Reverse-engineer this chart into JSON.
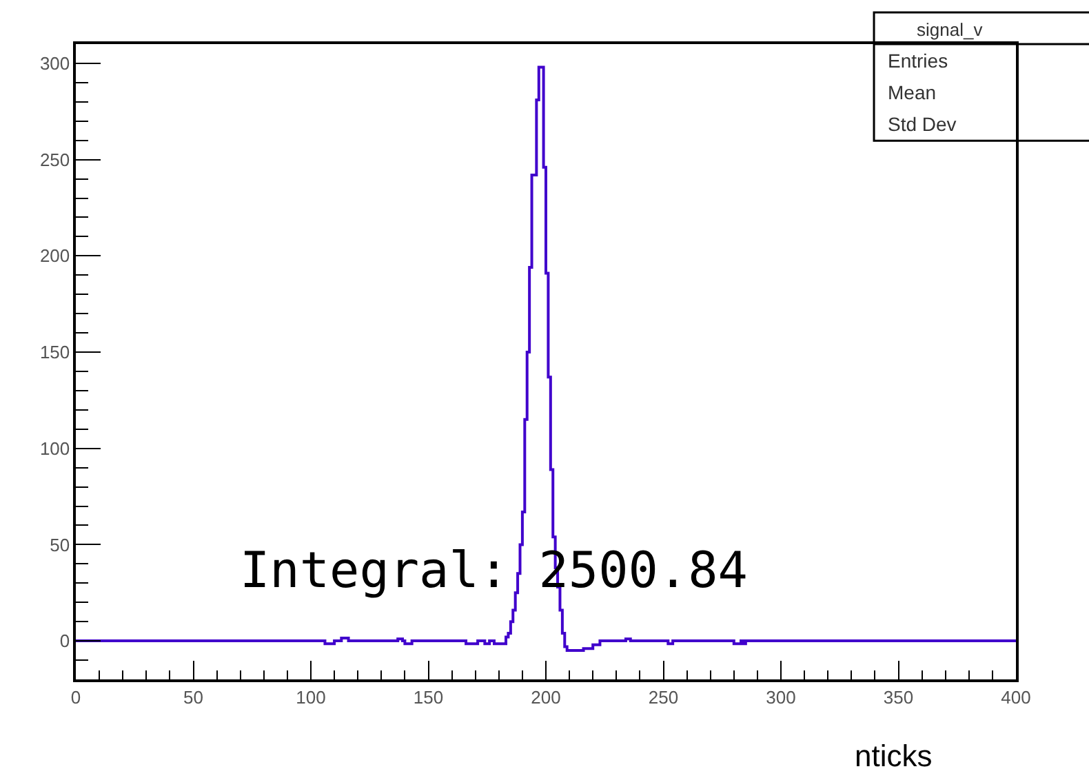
{
  "chart_data": {
    "type": "histogram",
    "xlabel": "nticks",
    "bins": [
      0,
      106,
      110,
      113,
      116,
      137,
      139,
      140,
      143,
      166,
      171,
      174,
      176,
      178,
      183,
      184,
      185,
      186,
      187,
      188,
      189,
      190,
      191,
      192,
      193,
      194,
      195,
      196,
      197,
      198,
      199,
      200,
      201,
      202,
      203,
      204,
      205,
      206,
      207,
      208,
      209,
      216,
      220,
      223,
      234,
      236,
      252,
      254,
      280,
      283,
      284,
      285,
      400
    ],
    "values": [
      0,
      -1.5,
      0,
      1.5,
      0,
      1,
      0,
      -1.5,
      0,
      -1.5,
      0,
      -1.5,
      0,
      -1.5,
      2,
      4,
      10,
      16,
      25,
      35,
      50,
      67,
      115,
      150,
      194,
      242,
      242,
      281,
      298,
      298,
      246,
      191,
      137,
      89,
      54,
      38,
      28,
      16,
      4,
      -3,
      -5,
      -4,
      -2,
      0,
      1,
      0,
      -1.5,
      0,
      -1.5,
      0,
      -1.5,
      0
    ],
    "color": "#4000cc",
    "xlim": [
      0,
      400
    ],
    "xticks": [
      0,
      50,
      100,
      150,
      200,
      250,
      300,
      350,
      400
    ],
    "ylim": [
      -20,
      310
    ],
    "yticks": [
      0,
      50,
      100,
      150,
      200,
      250,
      300
    ],
    "grid": false,
    "annotations": [
      "Integral: 2500.84",
      "signal_v",
      "Entries",
      "Mean",
      "Std Dev"
    ]
  }
}
